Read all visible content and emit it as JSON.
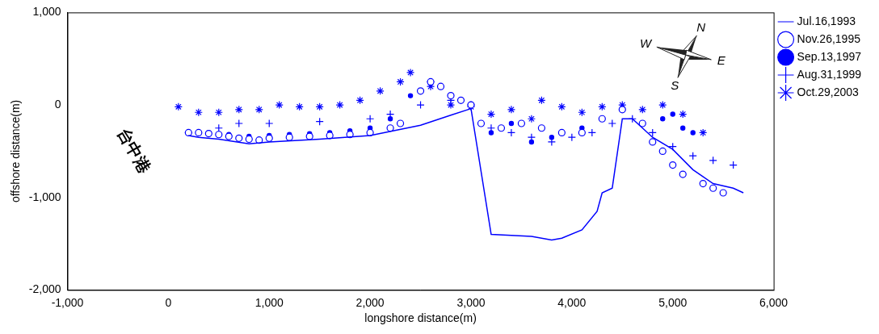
{
  "chart_data": {
    "type": "scatter",
    "x_label": "longshore distance(m)",
    "y_label": "offshore distance(m)",
    "xlim": [
      -1000,
      6000
    ],
    "xticks": [
      -1000,
      0,
      1000,
      2000,
      3000,
      4000,
      5000,
      6000
    ],
    "ylim": [
      -2000,
      1000
    ],
    "yticks": [
      -2000,
      -1000,
      0,
      1000
    ],
    "grid": false,
    "legend": "right",
    "annotations": [
      {
        "text": "台中港",
        "x": -350,
        "y": -500
      },
      {
        "text": "N",
        "x": 5280,
        "y": 830
      },
      {
        "text": "E",
        "x": 5480,
        "y": 470
      },
      {
        "text": "S",
        "x": 5020,
        "y": 200
      },
      {
        "text": "W",
        "x": 4730,
        "y": 660
      }
    ],
    "series": [
      {
        "name": "Jul.16,1993",
        "color": "#0000ff",
        "marker": "none",
        "line_style": "solid",
        "x": [
          200,
          300,
          500,
          800,
          1000,
          1500,
          2000,
          2500,
          2800,
          3000,
          3200,
          3400,
          3600,
          3800,
          3900,
          4100,
          4250,
          4300,
          4400,
          4500,
          4600,
          4800,
          5000,
          5200,
          5400,
          5600,
          5700
        ],
        "values": [
          -330,
          -350,
          -370,
          -420,
          -400,
          -370,
          -330,
          -220,
          -110,
          -40,
          -1400,
          -1410,
          -1420,
          -1460,
          -1440,
          -1350,
          -1150,
          -950,
          -900,
          -150,
          -150,
          -350,
          -480,
          -700,
          -850,
          -900,
          -950
        ]
      },
      {
        "name": "Nov.26,1995",
        "color": "#0000ff",
        "marker": "circle-open",
        "line_style": "none",
        "x": [
          200,
          300,
          400,
          500,
          600,
          700,
          800,
          900,
          1000,
          1200,
          1400,
          1600,
          1800,
          2000,
          2200,
          2300,
          2500,
          2600,
          2700,
          2800,
          2900,
          3000,
          3100,
          3300,
          3500,
          3700,
          3900,
          4100,
          4300,
          4500,
          4700,
          4800,
          4900,
          5000,
          5100,
          5300,
          5400,
          5500
        ],
        "values": [
          -300,
          -300,
          -310,
          -320,
          -340,
          -360,
          -370,
          -380,
          -360,
          -350,
          -340,
          -330,
          -320,
          -300,
          -250,
          -200,
          150,
          250,
          200,
          100,
          50,
          0,
          -200,
          -250,
          -200,
          -250,
          -300,
          -300,
          -150,
          -50,
          -200,
          -400,
          -500,
          -650,
          -750,
          -850,
          -900,
          -950
        ]
      },
      {
        "name": "Sep.13,1997",
        "color": "#0000ff",
        "marker": "dot",
        "line_style": "none",
        "x": [
          200,
          400,
          600,
          800,
          1000,
          1200,
          1400,
          1600,
          1800,
          2000,
          2200,
          2400,
          2600,
          2800,
          3000,
          3100,
          3200,
          3400,
          3600,
          3800,
          3900,
          4100,
          4300,
          4500,
          4700,
          4900,
          5000,
          5100,
          5200
        ],
        "values": [
          -300,
          -300,
          -320,
          -340,
          -330,
          -320,
          -310,
          -300,
          -280,
          -250,
          -150,
          100,
          250,
          100,
          0,
          -200,
          -300,
          -200,
          -400,
          -350,
          -300,
          -250,
          -150,
          -50,
          -200,
          -150,
          -100,
          -250,
          -300
        ]
      },
      {
        "name": "Aug.31,1999",
        "color": "#0000ff",
        "marker": "plus",
        "line_style": "none",
        "x": [
          200,
          500,
          700,
          1000,
          1500,
          2000,
          2200,
          2500,
          2600,
          2800,
          3000,
          3200,
          3400,
          3600,
          3800,
          4000,
          4200,
          4400,
          4600,
          4800,
          5000,
          5200,
          5400,
          5600
        ],
        "values": [
          -300,
          -250,
          -200,
          -200,
          -180,
          -150,
          -100,
          0,
          250,
          50,
          0,
          -250,
          -300,
          -350,
          -400,
          -350,
          -300,
          -200,
          -150,
          -300,
          -450,
          -550,
          -600,
          -650
        ]
      },
      {
        "name": "Oct.29,2003",
        "color": "#0000ff",
        "marker": "asterisk",
        "line_style": "none",
        "x": [
          100,
          300,
          500,
          700,
          900,
          1100,
          1300,
          1500,
          1700,
          1900,
          2100,
          2300,
          2400,
          2600,
          2800,
          3000,
          3200,
          3400,
          3600,
          3700,
          3900,
          4100,
          4300,
          4500,
          4700,
          4900,
          5100,
          5300
        ],
        "values": [
          -20,
          -80,
          -80,
          -50,
          -50,
          0,
          -20,
          -20,
          0,
          50,
          150,
          250,
          350,
          200,
          0,
          -20,
          -100,
          -50,
          -150,
          50,
          -20,
          -80,
          -20,
          0,
          -50,
          0,
          -100,
          -300
        ]
      }
    ]
  }
}
